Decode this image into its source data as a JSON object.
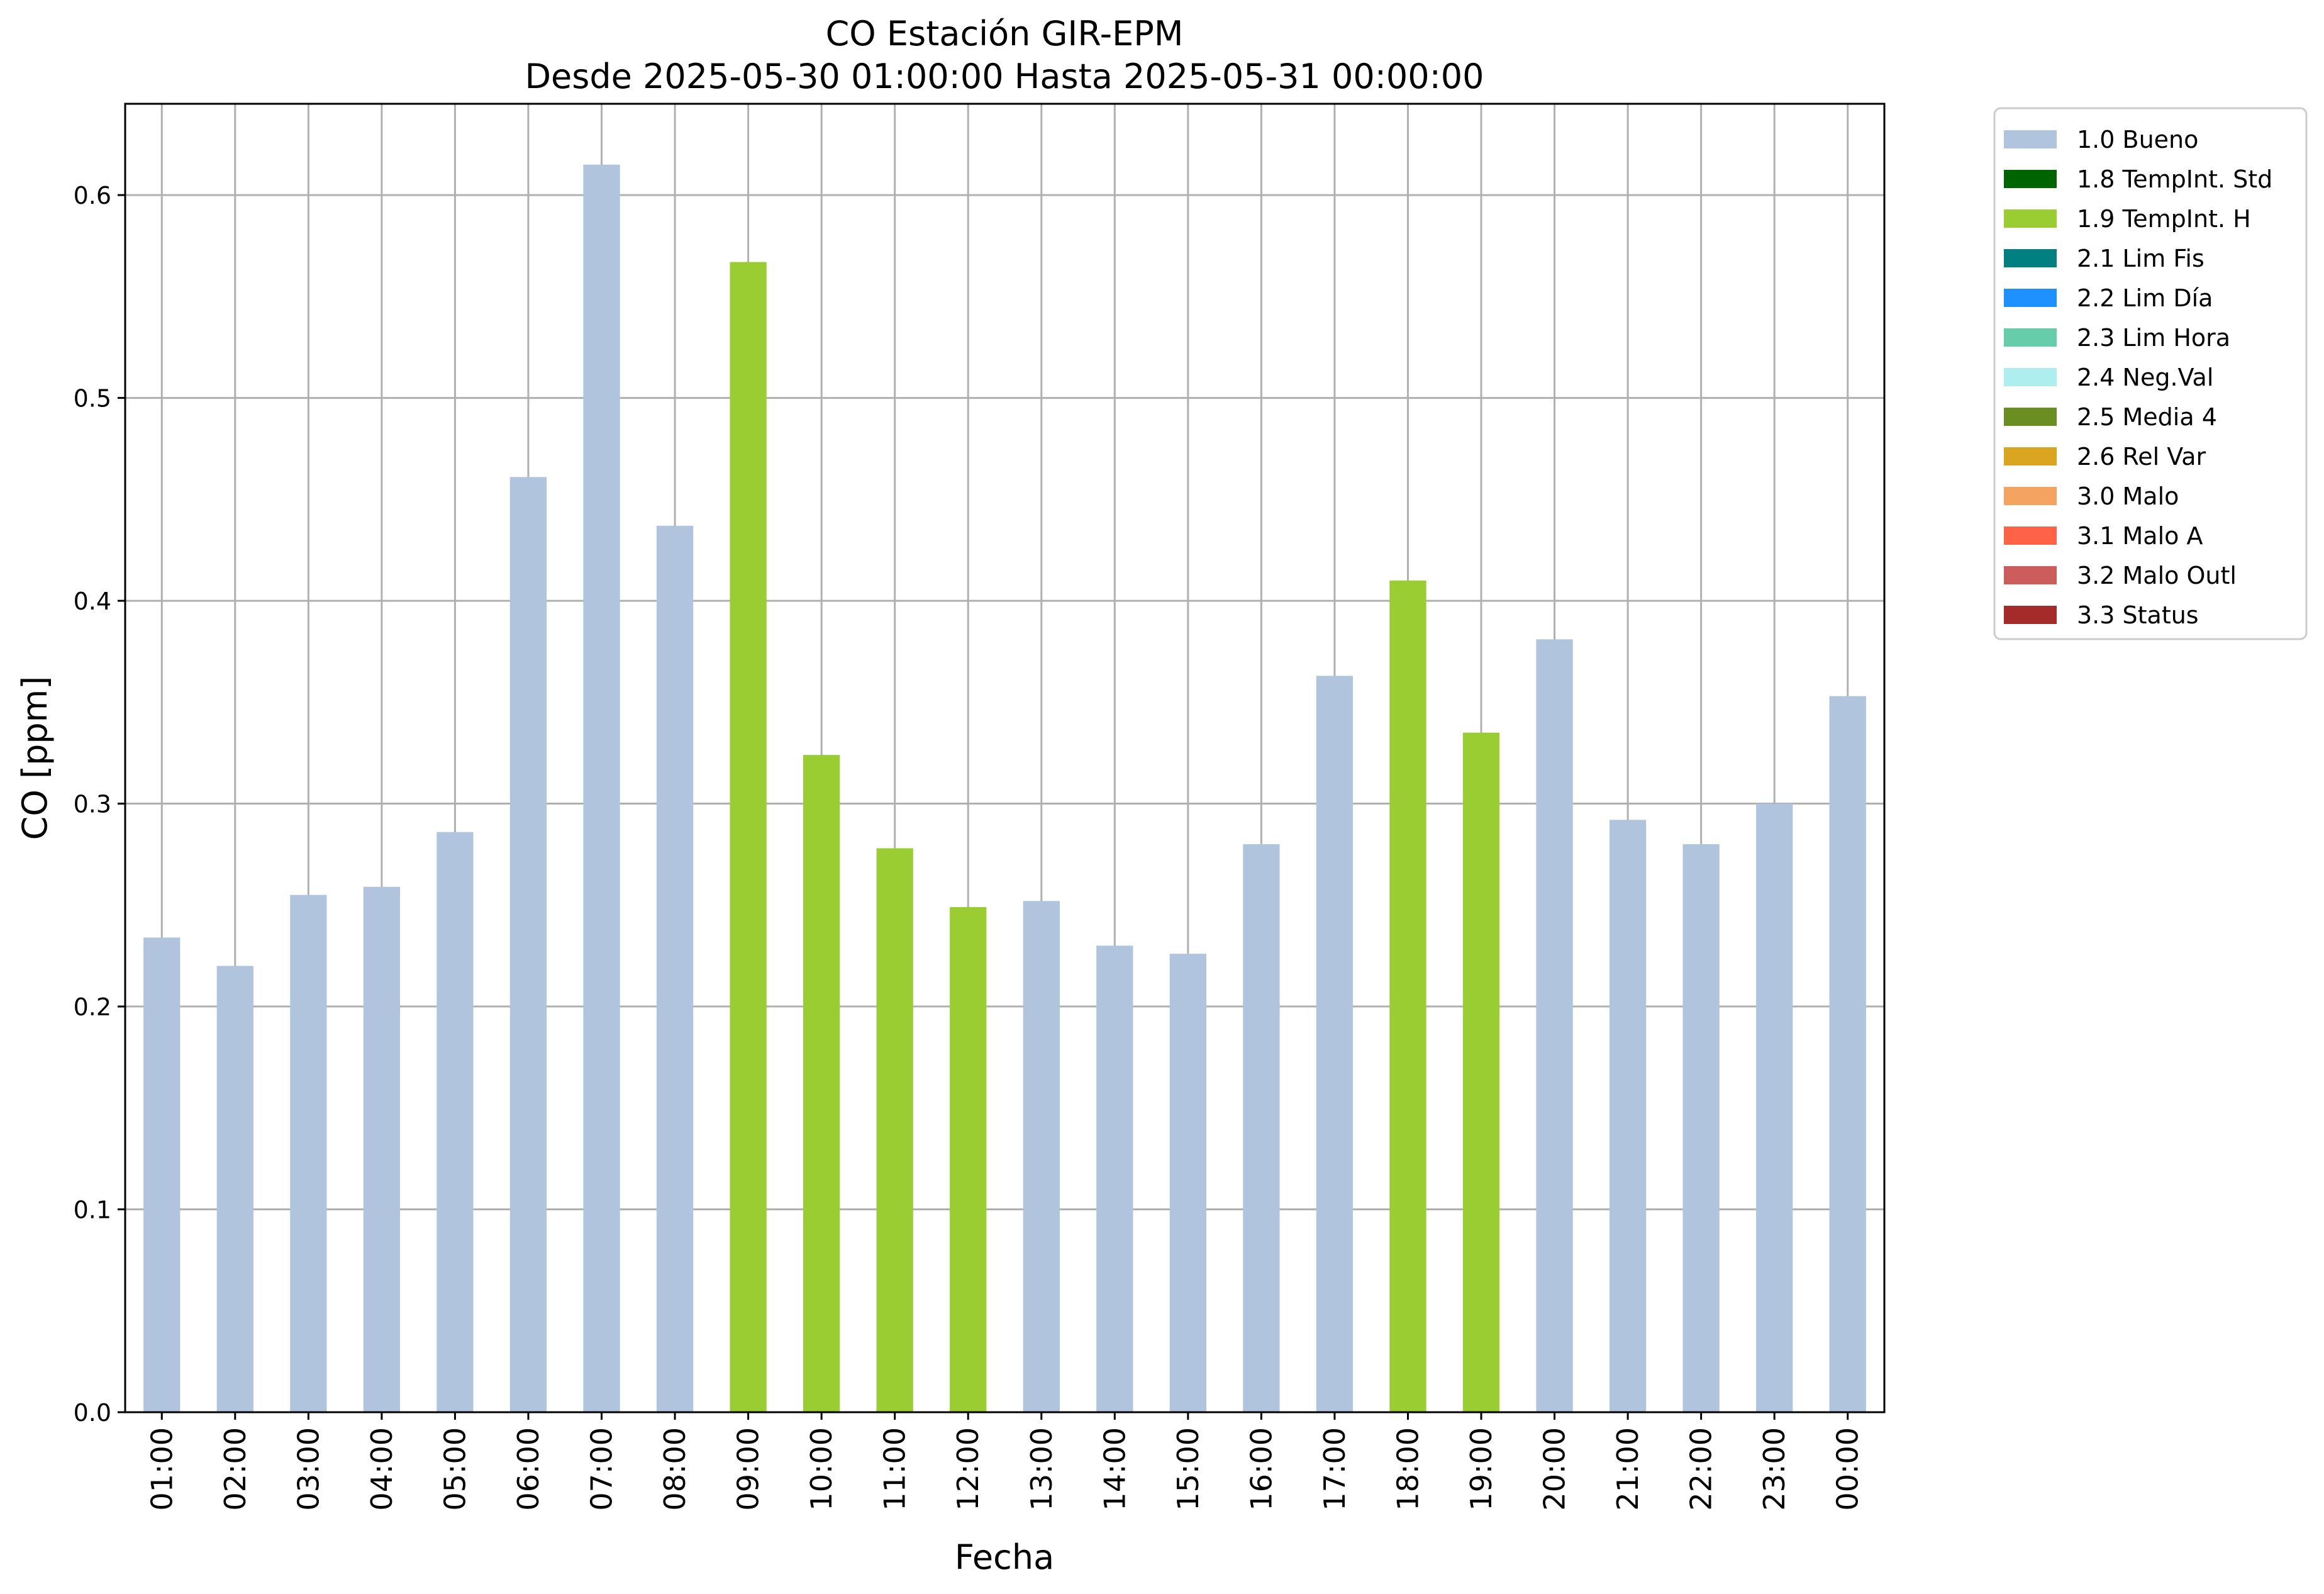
{
  "chart_data": {
    "type": "bar",
    "title": "CO Estación GIR-EPM",
    "subtitle": "Desde 2025-05-30 01:00:00 Hasta 2025-05-31 00:00:00",
    "xlabel": "Fecha",
    "ylabel": "CO [ppm]",
    "ylim": [
      0,
      0.645
    ],
    "yticks": [
      "0.0",
      "0.1",
      "0.2",
      "0.3",
      "0.4",
      "0.5",
      "0.6"
    ],
    "grid": true,
    "legend_position": "outside-top-right",
    "categories": [
      "01:00",
      "02:00",
      "03:00",
      "04:00",
      "05:00",
      "06:00",
      "07:00",
      "08:00",
      "09:00",
      "10:00",
      "11:00",
      "12:00",
      "13:00",
      "14:00",
      "15:00",
      "16:00",
      "17:00",
      "18:00",
      "19:00",
      "20:00",
      "21:00",
      "22:00",
      "23:00",
      "00:00"
    ],
    "values": [
      0.234,
      0.22,
      0.255,
      0.259,
      0.286,
      0.461,
      0.615,
      0.437,
      0.567,
      0.324,
      0.278,
      0.249,
      0.252,
      0.23,
      0.226,
      0.28,
      0.363,
      0.41,
      0.335,
      0.381,
      0.292,
      0.28,
      0.3,
      0.353
    ],
    "flags": [
      "1.0 Bueno",
      "1.0 Bueno",
      "1.0 Bueno",
      "1.0 Bueno",
      "1.0 Bueno",
      "1.0 Bueno",
      "1.0 Bueno",
      "1.0 Bueno",
      "1.9 TempInt. H",
      "1.9 TempInt. H",
      "1.9 TempInt. H",
      "1.9 TempInt. H",
      "1.0 Bueno",
      "1.0 Bueno",
      "1.0 Bueno",
      "1.0 Bueno",
      "1.0 Bueno",
      "1.9 TempInt. H",
      "1.9 TempInt. H",
      "1.0 Bueno",
      "1.0 Bueno",
      "1.0 Bueno",
      "1.0 Bueno",
      "1.0 Bueno"
    ],
    "legend": [
      {
        "label": "1.0 Bueno",
        "color": "#b0c4de"
      },
      {
        "label": "1.8 TempInt. Std",
        "color": "#006400"
      },
      {
        "label": "1.9 TempInt. H",
        "color": "#9acd32"
      },
      {
        "label": "2.1 Lim Fis",
        "color": "#008080"
      },
      {
        "label": "2.2 Lim Día",
        "color": "#1e90ff"
      },
      {
        "label": "2.3 Lim Hora",
        "color": "#66cdaa"
      },
      {
        "label": "2.4 Neg.Val",
        "color": "#afeeee"
      },
      {
        "label": "2.5 Media 4",
        "color": "#6b8e23"
      },
      {
        "label": "2.6 Rel Var",
        "color": "#daa520"
      },
      {
        "label": "3.0 Malo",
        "color": "#f4a460"
      },
      {
        "label": "3.1 Malo A",
        "color": "#ff6347"
      },
      {
        "label": "3.2 Malo Outl",
        "color": "#cd5c5c"
      },
      {
        "label": "3.3 Status",
        "color": "#a52a2a"
      }
    ],
    "grid_color": "#b0b0b0"
  }
}
